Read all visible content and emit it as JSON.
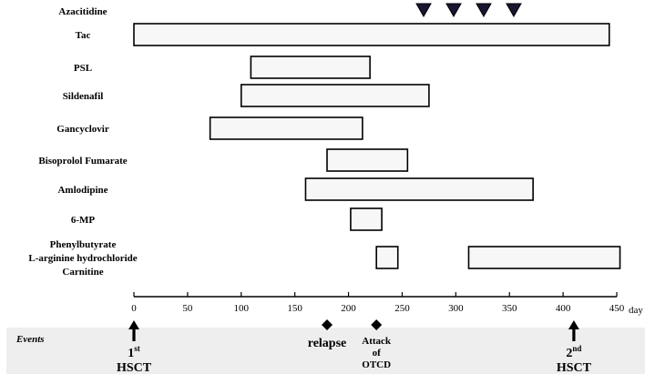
{
  "chart_data": {
    "type": "gantt",
    "xlabel": "day",
    "xlim": [
      0,
      450
    ],
    "xticks": [
      0,
      50,
      100,
      150,
      200,
      250,
      300,
      350,
      400,
      450
    ],
    "rows": [
      {
        "lines": [
          "Azacitidine"
        ],
        "bars": [],
        "markers": [
          270,
          298,
          326,
          354
        ]
      },
      {
        "lines": [
          "Tac"
        ],
        "bars": [
          [
            0,
            443
          ]
        ],
        "markers": []
      },
      {
        "lines": [
          "PSL"
        ],
        "bars": [
          [
            109,
            220
          ]
        ],
        "markers": []
      },
      {
        "lines": [
          "Sildenafil"
        ],
        "bars": [
          [
            100,
            275
          ]
        ],
        "markers": []
      },
      {
        "lines": [
          "Gancyclovir"
        ],
        "bars": [
          [
            71,
            213
          ]
        ],
        "markers": []
      },
      {
        "lines": [
          "Bisoprolol Fumarate"
        ],
        "bars": [
          [
            180,
            255
          ]
        ],
        "markers": []
      },
      {
        "lines": [
          "Amlodipine"
        ],
        "bars": [
          [
            160,
            372
          ]
        ],
        "markers": []
      },
      {
        "lines": [
          "6-MP"
        ],
        "bars": [
          [
            202,
            231
          ]
        ],
        "markers": []
      },
      {
        "lines": [
          "Phenylbutyrate",
          "L-arginine hydrochloride",
          "Carnitine"
        ],
        "bars": [
          [
            226,
            246
          ],
          [
            312,
            453
          ]
        ],
        "markers": []
      }
    ],
    "events_title": "Events",
    "events": [
      {
        "day": 0,
        "marker": "arrow",
        "label": "1",
        "sup": "st",
        "label2": "HSCT"
      },
      {
        "day": 180,
        "marker": "diamond",
        "label": "relapse",
        "sup": "",
        "label2": ""
      },
      {
        "day": 226,
        "marker": "diamond",
        "label": "Attack",
        "sup": "",
        "label2": "of",
        "label3": "OTCD"
      },
      {
        "day": 410,
        "marker": "arrow",
        "label": "2",
        "sup": "nd",
        "label2": "HSCT"
      }
    ]
  }
}
